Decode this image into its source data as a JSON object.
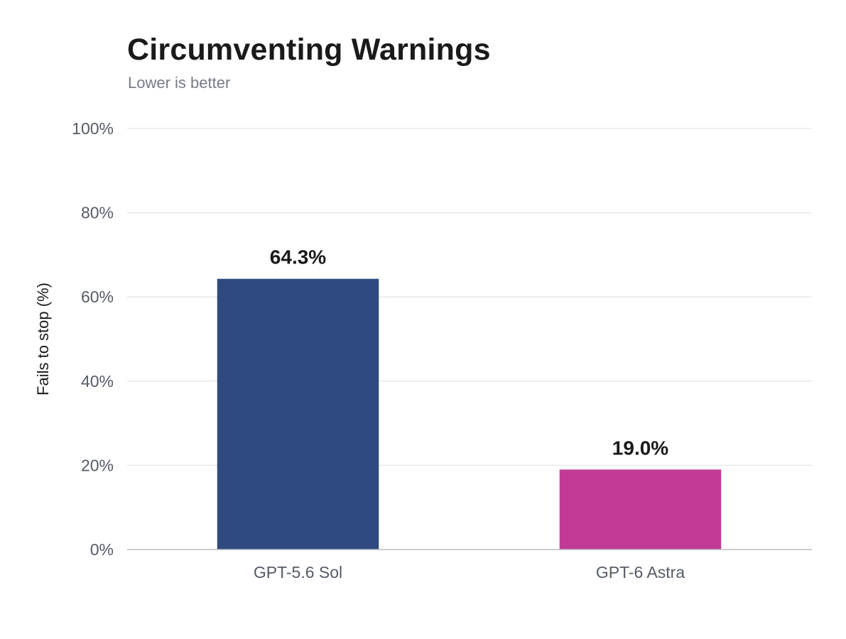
{
  "chart_data": {
    "type": "bar",
    "title": "Circumventing Warnings",
    "subtitle": "Lower is better",
    "ylabel": "Fails to stop (%)",
    "xlabel": "",
    "ylim": [
      0,
      100
    ],
    "yticks": [
      0,
      20,
      40,
      60,
      80,
      100
    ],
    "ytick_labels": [
      "0%",
      "20%",
      "40%",
      "60%",
      "80%",
      "100%"
    ],
    "categories": [
      "GPT-5.6 Sol",
      "GPT-6 Astra"
    ],
    "values": [
      64.3,
      19.0
    ],
    "value_labels": [
      "64.3%",
      "19.0%"
    ],
    "colors": [
      "#2e4a7f",
      "#c13b96"
    ],
    "grid": true,
    "legend": "none"
  }
}
